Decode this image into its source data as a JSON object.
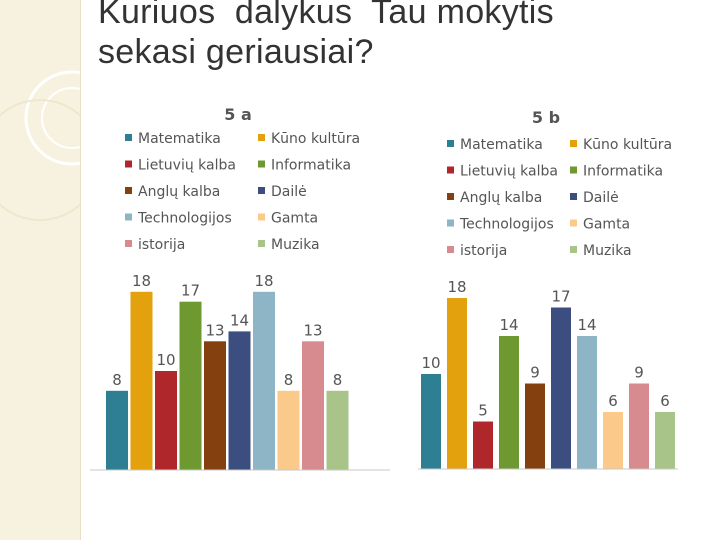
{
  "slide": {
    "title_line1": "Kuriuos  dalykus  Tau mokytis",
    "title_line2": "sekasi geriausiai?"
  },
  "chart_data": [
    {
      "type": "bar",
      "title": "5 a",
      "categories": [
        "Matematika",
        "Lietuvių kalba",
        "Anglų kalba",
        "Technologijos",
        "istorija",
        "Kūno kultūra",
        "Informatika",
        "Dailė",
        "Gamta",
        "Muzika"
      ],
      "bar_order": [
        "Matematika",
        "Kūno kultūra",
        "Lietuvių kalba",
        "Informatika",
        "Anglų kalba",
        "Dailė",
        "Technologijos",
        "Gamta",
        "istorija",
        "Muzika"
      ],
      "values": [
        8,
        18,
        10,
        17,
        13,
        14,
        18,
        8,
        13,
        8
      ],
      "colors": [
        "#2e7f94",
        "#e3a20d",
        "#b0272b",
        "#6e9930",
        "#84400f",
        "#3c4e7f",
        "#8eb5c6",
        "#fbc98a",
        "#d78b8e",
        "#a9c489"
      ],
      "legend_placement": "top, two columns",
      "ylim": [
        0,
        20
      ],
      "grid": false
    },
    {
      "type": "bar",
      "title": "5 b",
      "categories": [
        "Matematika",
        "Lietuvių kalba",
        "Anglų kalba",
        "Technologijos",
        "istorija",
        "Kūno kultūra",
        "Informatika",
        "Dailė",
        "Gamta",
        "Muzika"
      ],
      "bar_order": [
        "Matematika",
        "Kūno kultūra",
        "Lietuvių kalba",
        "Informatika",
        "Anglų kalba",
        "Dailė",
        "Technologijos",
        "Gamta",
        "istorija",
        "Muzika"
      ],
      "values": [
        10,
        18,
        5,
        14,
        9,
        17,
        14,
        6,
        9,
        6
      ],
      "colors": [
        "#2e7f94",
        "#e3a20d",
        "#b0272b",
        "#6e9930",
        "#84400f",
        "#3c4e7f",
        "#8eb5c6",
        "#fbc98a",
        "#d78b8e",
        "#a9c489"
      ],
      "legend_placement": "top, two columns",
      "ylim": [
        0,
        20
      ],
      "grid": false
    }
  ]
}
